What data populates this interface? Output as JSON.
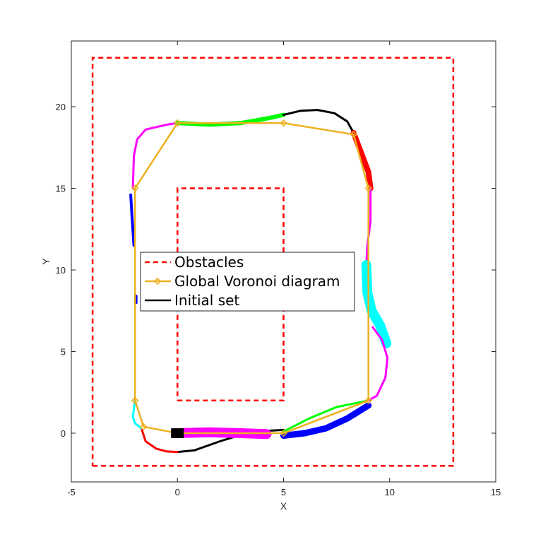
{
  "chart_data": {
    "type": "line",
    "title": "",
    "xlabel": "X",
    "ylabel": "Y",
    "xlim": [
      -5,
      15
    ],
    "ylim": [
      -3,
      24
    ],
    "xticks": [
      -5,
      0,
      5,
      10,
      15
    ],
    "yticks": [
      0,
      5,
      10,
      15,
      20
    ],
    "xtick_labels": [
      "-5",
      "0",
      "5",
      "10",
      "15"
    ],
    "ytick_labels": [
      "0",
      "5",
      "10",
      "15",
      "20"
    ],
    "grid": false,
    "legend_position": "center-left",
    "legend": [
      {
        "label": "Obstacles",
        "style": "dashed",
        "color": "#ff0000"
      },
      {
        "label": "Global Voronoi diagram",
        "style": "solid-diamond",
        "color": "#edb120"
      },
      {
        "label": "Initial set",
        "style": "solid",
        "color": "#000000"
      }
    ],
    "obstacles": [
      {
        "name": "outer",
        "x": [
          -4,
          13,
          13,
          -4,
          -4
        ],
        "y": [
          -2,
          -2,
          23,
          23,
          -2
        ]
      },
      {
        "name": "inner",
        "x": [
          0,
          5,
          5,
          0,
          0
        ],
        "y": [
          2,
          2,
          15,
          15,
          2
        ]
      }
    ],
    "voronoi": {
      "x": [
        0,
        -1.6,
        -2,
        -2,
        0,
        5,
        8.3,
        9,
        9,
        5,
        0
      ],
      "y": [
        0,
        0.4,
        2,
        15,
        19,
        19,
        18.3,
        15,
        2,
        0,
        0
      ]
    },
    "voronoi_extra_edge": {
      "x": [
        5,
        9
      ],
      "y": [
        0,
        2
      ]
    },
    "initial_set": {
      "x": [
        -0.3,
        0.3
      ],
      "y": [
        -0.3,
        0.3
      ]
    },
    "trajectory_segments": [
      {
        "color": "#000000",
        "x": [
          0,
          0.8,
          2,
          3.5,
          5
        ],
        "y": [
          -1.15,
          -1.05,
          -0.5,
          0.1,
          0.2
        ]
      },
      {
        "color": "#ff0000",
        "x": [
          -1.7,
          -1.5,
          -1.0,
          -0.5,
          0
        ],
        "y": [
          0.3,
          -0.5,
          -0.95,
          -1.12,
          -1.15
        ]
      },
      {
        "color": "#00ffff",
        "x": [
          -2,
          -2.1,
          -2.0,
          -1.7
        ],
        "y": [
          2,
          1.0,
          0.6,
          0.3
        ]
      },
      {
        "color": "#0000ff",
        "x": [
          -2.2,
          -2.15,
          -2.05
        ],
        "y": [
          14.6,
          13.5,
          11.5
        ]
      },
      {
        "color": "#0000ff",
        "x": [
          -1.95,
          -1.95
        ],
        "y": [
          8.4,
          8.0
        ]
      },
      {
        "color": "#ff00ff",
        "x": [
          -2.1,
          -2.05,
          -1.9,
          -1.5,
          -0.5,
          0
        ],
        "y": [
          15,
          17.0,
          18.0,
          18.6,
          18.9,
          19
        ]
      },
      {
        "color": "#00ff00",
        "x": [
          0,
          1.5,
          3,
          4.3,
          5
        ],
        "y": [
          19,
          18.9,
          19.0,
          19.3,
          19.5
        ]
      },
      {
        "color": "#000000",
        "x": [
          5,
          5.8,
          6.6,
          7.4,
          8.0,
          8.3
        ],
        "y": [
          19.5,
          19.75,
          19.8,
          19.6,
          19.1,
          18.4
        ]
      },
      {
        "color": "#ff0000",
        "x": [
          8.3,
          8.65,
          9.0,
          9.1
        ],
        "y": [
          18.4,
          17.2,
          16.0,
          15.0
        ]
      },
      {
        "color": "#ff00ff",
        "x": [
          9.1,
          9.1,
          8.95,
          8.9
        ],
        "y": [
          15.0,
          13.0,
          11.5,
          10.3
        ]
      },
      {
        "color": "#00ffff",
        "x": [
          8.9,
          8.95,
          9.15,
          9.55,
          9.85
        ],
        "y": [
          10.3,
          8.6,
          7.5,
          6.6,
          5.5
        ]
      },
      {
        "color": "#ff00ff",
        "x": [
          9.2,
          9.65,
          9.9,
          9.8,
          9.4,
          9.0
        ],
        "y": [
          6.5,
          5.7,
          4.6,
          3.4,
          2.3,
          2.0
        ]
      },
      {
        "color": "#00ff00",
        "x": [
          9.0,
          7.5,
          6.2,
          5.0
        ],
        "y": [
          2.0,
          1.6,
          0.9,
          0.1
        ]
      },
      {
        "color": "#0000ff",
        "x": [
          9.0,
          8.0,
          7.0,
          6.0,
          5.0
        ],
        "y": [
          1.7,
          0.9,
          0.3,
          0.0,
          -0.15
        ]
      },
      {
        "color": "#ff00ff",
        "x": [
          0,
          1.5,
          3,
          4.2
        ],
        "y": [
          0,
          0.05,
          0.0,
          -0.05
        ]
      }
    ]
  }
}
